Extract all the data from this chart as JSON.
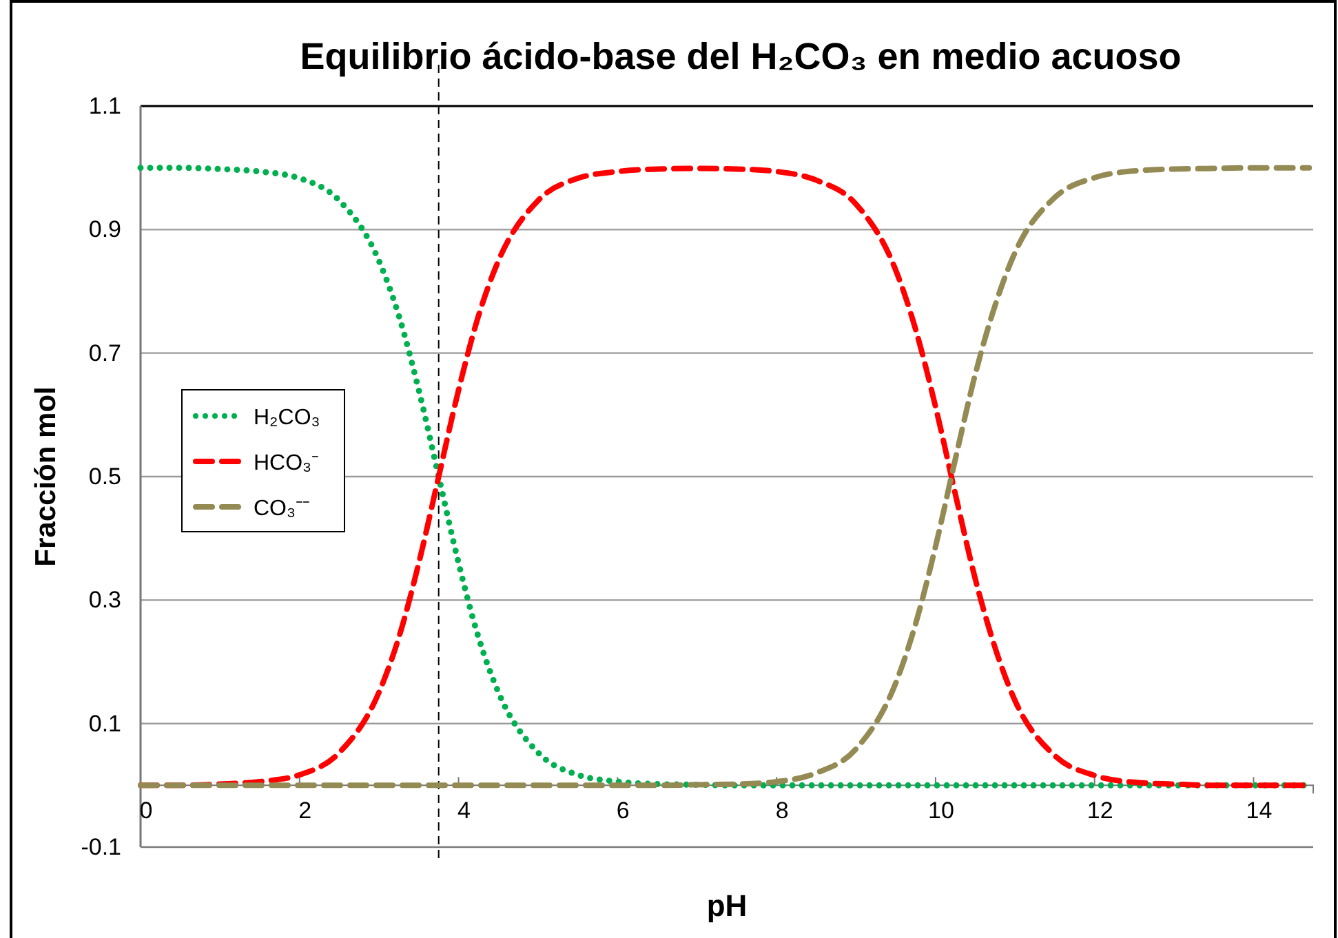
{
  "chart_data": {
    "type": "line",
    "title": "Equilibrio ácido-base del H₂CO₃ en medio acuoso",
    "xlabel": "pH",
    "ylabel": "Fracción mol",
    "x": [
      0,
      0.5,
      1,
      1.5,
      2,
      2.5,
      3,
      3.25,
      3.5,
      3.75,
      4,
      4.25,
      4.5,
      5,
      5.5,
      6,
      6.5,
      7,
      7.5,
      8,
      8.5,
      9,
      9.5,
      9.75,
      10,
      10.25,
      10.5,
      11,
      11.5,
      12,
      12.5,
      13,
      13.5,
      14,
      14.7
    ],
    "series": [
      {
        "name": "H₂CO₃",
        "color": "#00b050",
        "line_style": "dotted",
        "values": [
          1,
          1,
          0.998,
          0.994,
          0.983,
          0.947,
          0.849,
          0.76,
          0.64,
          0.5,
          0.36,
          0.24,
          0.151,
          0.053,
          0.017,
          0.006,
          0.002,
          0.001,
          0,
          0,
          0,
          0,
          0,
          0,
          0,
          0,
          0,
          0,
          0,
          0,
          0,
          0,
          0,
          0,
          0
        ]
      },
      {
        "name": "HCO₃⁻",
        "color": "#ff0000",
        "line_style": "dashed",
        "values": [
          0,
          0,
          0.002,
          0.006,
          0.017,
          0.053,
          0.151,
          0.24,
          0.36,
          0.5,
          0.64,
          0.76,
          0.849,
          0.947,
          0.983,
          0.994,
          0.998,
          0.999,
          0.998,
          0.994,
          0.98,
          0.941,
          0.834,
          0.738,
          0.613,
          0.471,
          0.334,
          0.137,
          0.048,
          0.016,
          0.005,
          0.002,
          0,
          0,
          0
        ]
      },
      {
        "name": "CO₃⁻⁻",
        "color": "#948a54",
        "line_style": "dashed",
        "values": [
          0,
          0,
          0,
          0,
          0,
          0,
          0,
          0,
          0,
          0,
          0,
          0,
          0,
          0,
          0,
          0,
          0,
          0.001,
          0.002,
          0.006,
          0.02,
          0.059,
          0.166,
          0.262,
          0.387,
          0.529,
          0.666,
          0.863,
          0.952,
          0.984,
          0.995,
          0.998,
          0.999,
          1,
          1
        ]
      }
    ],
    "xlim": [
      0,
      14.75
    ],
    "xticks": [
      0,
      2,
      4,
      6,
      8,
      10,
      12,
      14
    ],
    "ylim": [
      -0.1,
      1.1
    ],
    "yticks": [
      -0.1,
      0.1,
      0.3,
      0.5,
      0.7,
      0.9,
      1.1
    ],
    "ref_lines": [
      {
        "axis": "x",
        "value": 3.75,
        "color": "#000000",
        "line_style": "dashed"
      }
    ],
    "grid": "y",
    "legend": "left",
    "marker": "none"
  }
}
